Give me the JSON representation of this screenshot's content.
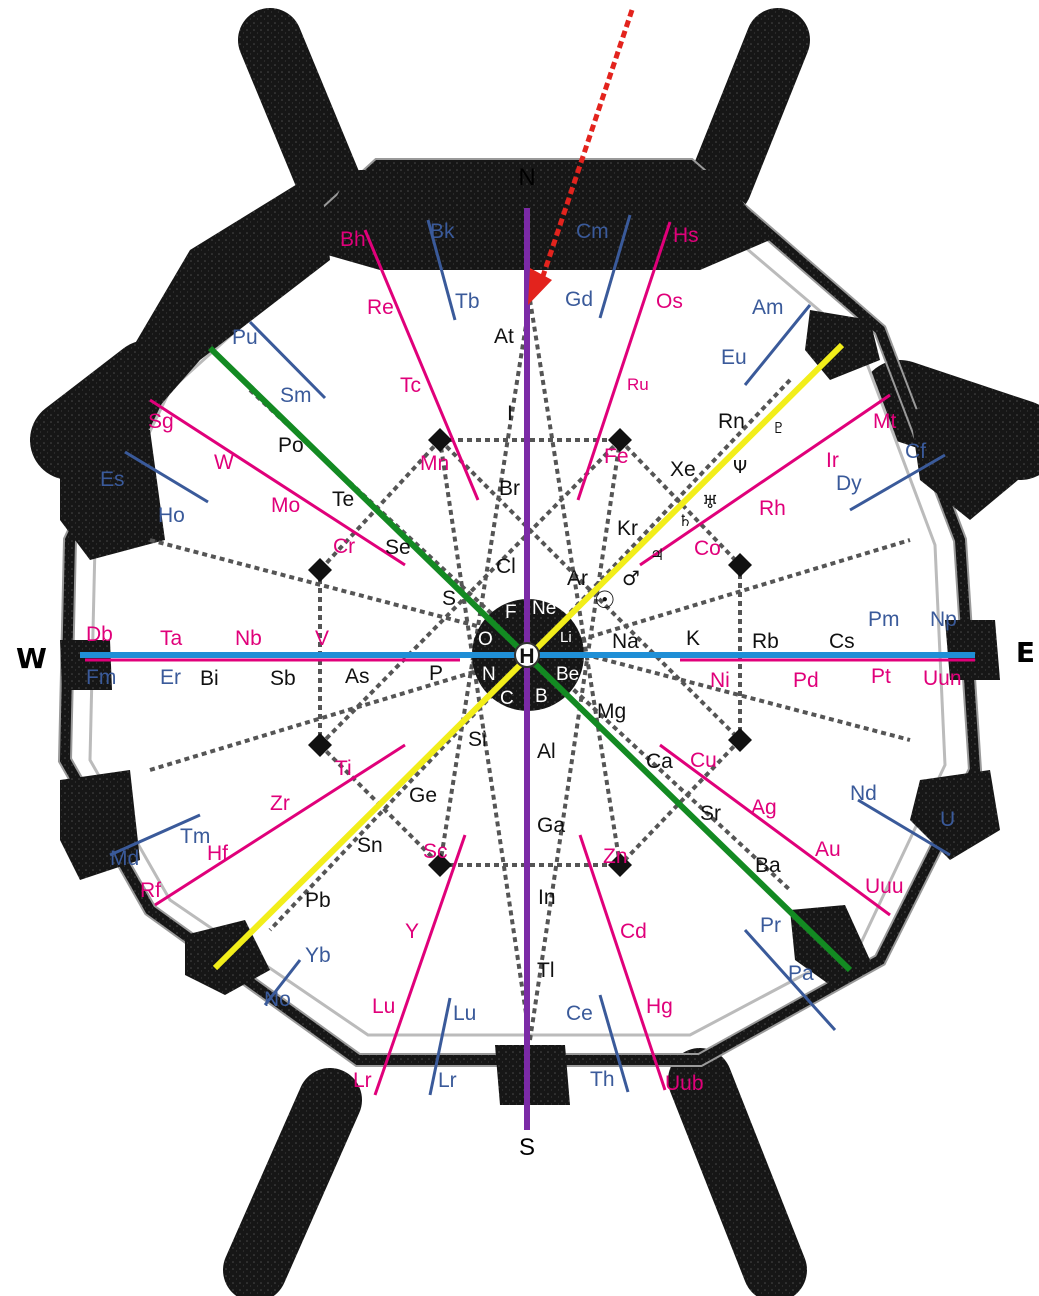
{
  "colors": {
    "dark": "#111111",
    "red": "#e0007a",
    "blue": "#3a5a9a",
    "black_text": "#111111",
    "meridian": "#7b2aa6",
    "equator": "#1f8fd6",
    "green": "#138a22",
    "yellow": "#f2ee1a",
    "arrow": "#e3231d"
  },
  "compass": {
    "north": "N",
    "south": "S",
    "east": "E",
    "west": "W"
  },
  "center_label": "H",
  "core": [
    "F",
    "Ne",
    "O",
    "N",
    "C",
    "B",
    "Be",
    "Li"
  ],
  "symbols": {
    "sun": "☉",
    "mars": "♂",
    "jupiter": "♃",
    "saturn": "♄",
    "uranus": "♅",
    "neptune": "Ψ",
    "pluto": "♇"
  },
  "labels": {
    "black": [
      "At",
      "I",
      "Br",
      "Cl",
      "S",
      "Po",
      "Te",
      "Se",
      "Rn",
      "Xe",
      "Kr",
      "Ar",
      "P",
      "As",
      "Sb",
      "Bi",
      "Na",
      "K",
      "Rb",
      "Cs",
      "Mg",
      "Si",
      "Al",
      "Ge",
      "Sn",
      "Pb",
      "Ga",
      "In",
      "Tl",
      "Ca",
      "Sr",
      "Ba"
    ],
    "red": [
      "Bh",
      "Re",
      "Tc",
      "Mn",
      "Hs",
      "Os",
      "Ru",
      "Fe",
      "Sg",
      "W",
      "Mo",
      "Cr",
      "Mt",
      "Ir",
      "Rh",
      "Co",
      "Db",
      "Ta",
      "Nb",
      "V",
      "Ni",
      "Pd",
      "Pt",
      "Uun",
      "Ti",
      "Zr",
      "Hf",
      "Rf",
      "Cu",
      "Ag",
      "Au",
      "Uuu",
      "Sc",
      "Y",
      "Lu",
      "Lr",
      "Zn",
      "Cd",
      "Hg",
      "Uub"
    ],
    "blue": [
      "Bk",
      "Tb",
      "Cm",
      "Gd",
      "Pu",
      "Sm",
      "Es",
      "Ho",
      "Am",
      "Eu",
      "Cf",
      "Dy",
      "Fm",
      "Er",
      "Pm",
      "Np",
      "Md",
      "Tm",
      "Nd",
      "U",
      "No",
      "Yb",
      "Pa",
      "Pr",
      "Lu",
      "Lr",
      "Ce",
      "Th"
    ]
  }
}
